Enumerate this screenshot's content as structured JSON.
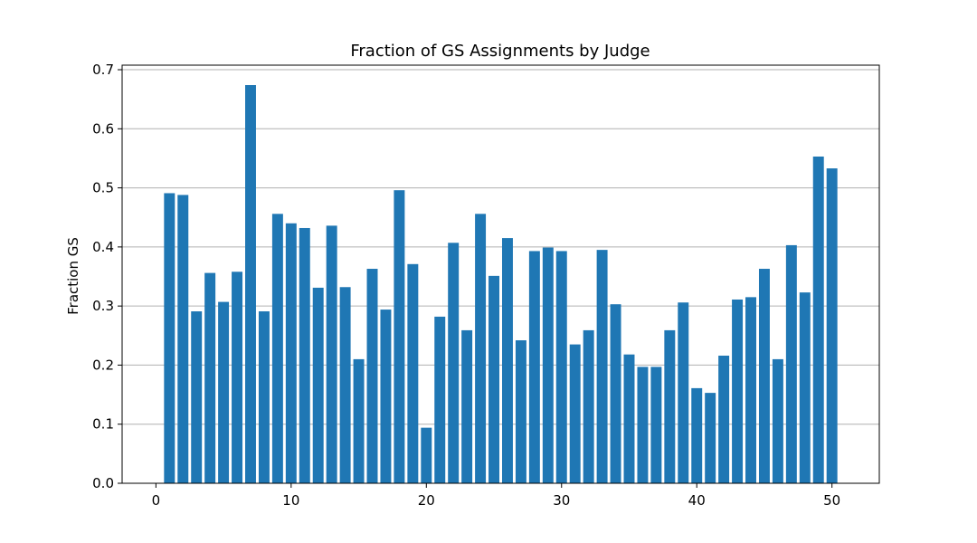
{
  "chart_data": {
    "type": "bar",
    "title": "Fraction of GS Assignments by Judge",
    "xlabel": "",
    "ylabel": "Fraction GS",
    "x": [
      1,
      2,
      3,
      4,
      5,
      6,
      7,
      8,
      9,
      10,
      11,
      12,
      13,
      14,
      15,
      16,
      17,
      18,
      19,
      20,
      21,
      22,
      23,
      24,
      25,
      26,
      27,
      28,
      29,
      30,
      31,
      32,
      33,
      34,
      35,
      36,
      37,
      38,
      39,
      40,
      41,
      42,
      43,
      44,
      45,
      46,
      47,
      48,
      49,
      50
    ],
    "values": [
      0.491,
      0.488,
      0.291,
      0.356,
      0.307,
      0.358,
      0.674,
      0.291,
      0.456,
      0.44,
      0.432,
      0.331,
      0.436,
      0.332,
      0.21,
      0.363,
      0.294,
      0.496,
      0.371,
      0.094,
      0.282,
      0.407,
      0.259,
      0.456,
      0.351,
      0.415,
      0.242,
      0.393,
      0.399,
      0.393,
      0.235,
      0.259,
      0.395,
      0.303,
      0.218,
      0.197,
      0.197,
      0.259,
      0.306,
      0.161,
      0.153,
      0.216,
      0.311,
      0.315,
      0.363,
      0.21,
      0.403,
      0.323,
      0.553,
      0.533
    ],
    "xlim": [
      -2.5,
      53.5
    ],
    "ylim": [
      0,
      0.7077
    ],
    "xticks": [
      0,
      10,
      20,
      30,
      40,
      50
    ],
    "yticks": [
      0.0,
      0.1,
      0.2,
      0.3,
      0.4,
      0.5,
      0.6,
      0.7
    ],
    "ytick_labels": [
      "0.0",
      "0.1",
      "0.2",
      "0.3",
      "0.4",
      "0.5",
      "0.6",
      "0.7"
    ],
    "xtick_labels": [
      "0",
      "10",
      "20",
      "30",
      "40",
      "50"
    ],
    "grid": "y",
    "bar_color": "#1f77b4",
    "grid_color": "#b0b0b0"
  }
}
